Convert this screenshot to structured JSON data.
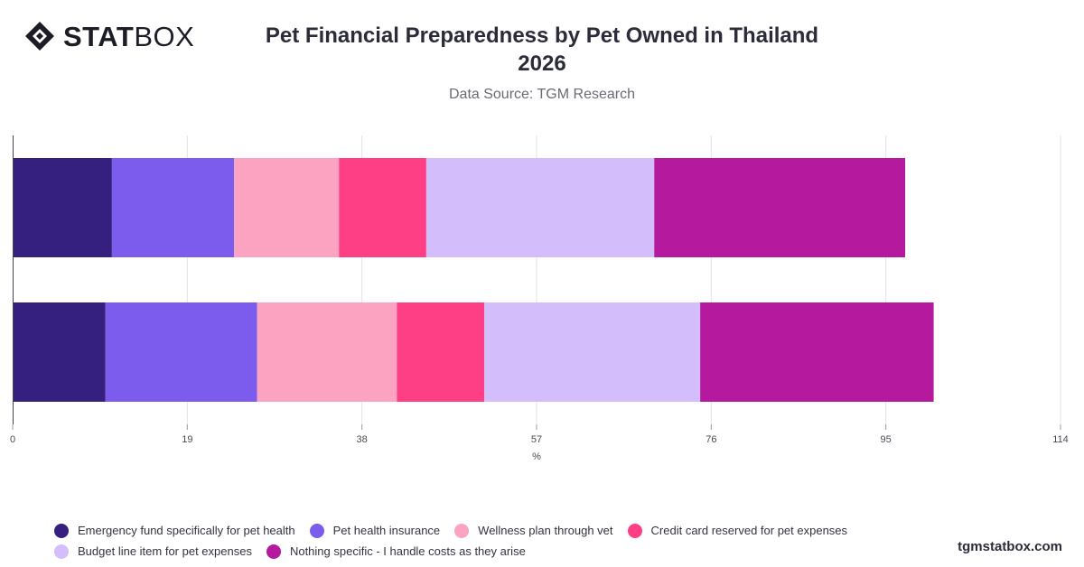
{
  "logo": {
    "strong": "STAT",
    "light": "BOX"
  },
  "header": {
    "title_line1": "Pet Financial Preparedness by Pet Owned in Thailand",
    "title_line2": "2026",
    "subtitle": "Data Source: TGM Research"
  },
  "brand": "tgmstatbox.com",
  "chart_data": {
    "type": "bar",
    "orientation": "horizontal",
    "stacked": true,
    "categories": [
      "",
      ""
    ],
    "xlabel": "%",
    "xlim": [
      0,
      114
    ],
    "xticks": [
      0,
      19,
      38,
      57,
      76,
      95,
      114
    ],
    "grid": true,
    "legend_position": "bottom",
    "series": [
      {
        "name": "Emergency fund specifically for pet health",
        "color": "#35207f",
        "values": [
          10.8,
          10.1
        ]
      },
      {
        "name": "Pet health insurance",
        "color": "#7b5cec",
        "values": [
          13.3,
          16.5
        ]
      },
      {
        "name": "Wellness plan through vet",
        "color": "#fca3c2",
        "values": [
          11.4,
          15.2
        ]
      },
      {
        "name": "Credit card reserved for pet expenses",
        "color": "#ff3f85",
        "values": [
          9.5,
          9.5
        ]
      },
      {
        "name": "Budget line item for pet expenses",
        "color": "#d4bdfb",
        "values": [
          24.8,
          23.5
        ]
      },
      {
        "name": "Nothing specific - I handle costs as they arise",
        "color": "#b4199e",
        "values": [
          27.3,
          25.4
        ]
      }
    ]
  }
}
